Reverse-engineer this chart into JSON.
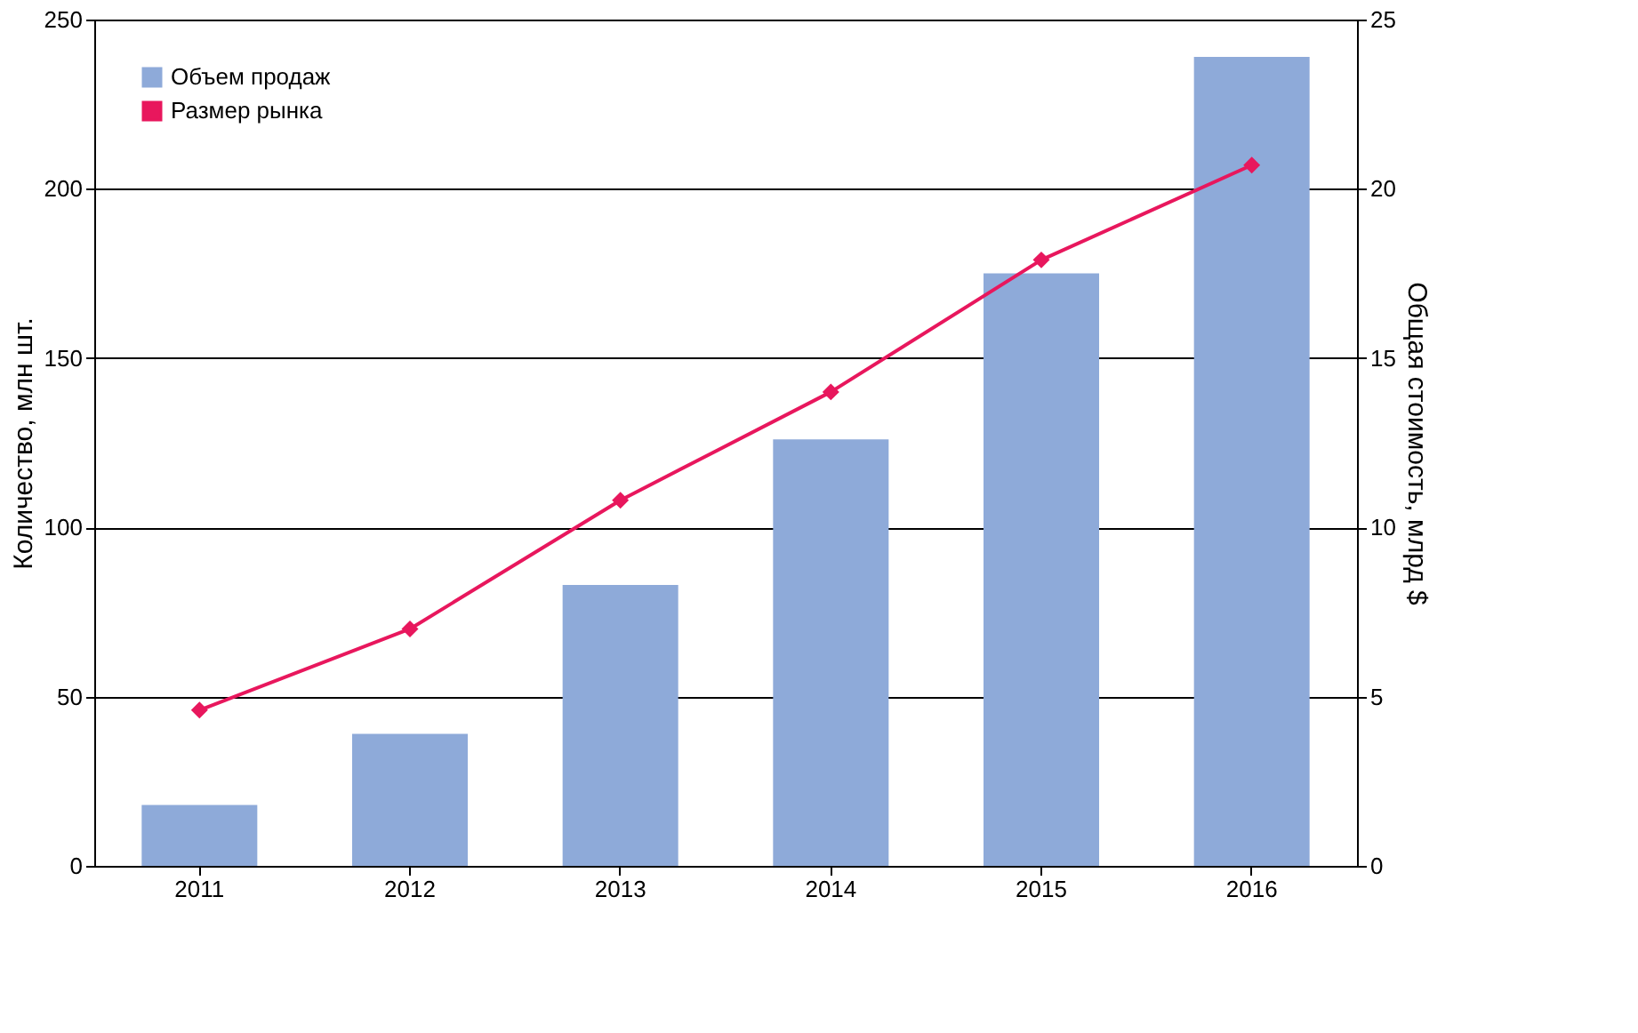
{
  "chart_data": {
    "type": "bar",
    "categories": [
      "2011",
      "2012",
      "2013",
      "2014",
      "2015",
      "2016"
    ],
    "ylabel": "Количество, млн шт.",
    "y2label": "Общая стоимость, млрд $",
    "series": [
      {
        "name": "Объем продаж",
        "color": "#8eaad9",
        "values": [
          18,
          39,
          83,
          126,
          175,
          239
        ]
      },
      {
        "name": "Размер рынка",
        "type": "line",
        "axis": "y2",
        "color": "#e8175d",
        "marker": "diamond",
        "line_style": "solid",
        "values": [
          4.6,
          7.0,
          10.8,
          14.0,
          17.9,
          20.7
        ]
      }
    ],
    "ylim": [
      0,
      250
    ],
    "yticks": [
      0,
      50,
      100,
      150,
      200,
      250
    ],
    "y2lim": [
      0,
      25
    ],
    "y2ticks": [
      0,
      5,
      10,
      15,
      20,
      25
    ],
    "grid": "y",
    "legend": "top left"
  }
}
